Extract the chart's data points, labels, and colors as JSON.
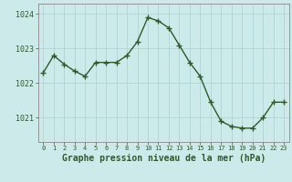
{
  "x": [
    0,
    1,
    2,
    3,
    4,
    5,
    6,
    7,
    8,
    9,
    10,
    11,
    12,
    13,
    14,
    15,
    16,
    17,
    18,
    19,
    20,
    21,
    22,
    23
  ],
  "y": [
    1022.3,
    1022.8,
    1022.55,
    1022.35,
    1022.2,
    1022.6,
    1022.6,
    1022.6,
    1022.8,
    1023.2,
    1023.9,
    1023.8,
    1023.6,
    1023.1,
    1022.6,
    1022.2,
    1021.45,
    1020.9,
    1020.75,
    1020.7,
    1020.7,
    1021.0,
    1021.45,
    1021.45
  ],
  "line_color": "#2d5a2d",
  "marker": "+",
  "markersize": 4,
  "linewidth": 1.0,
  "bg_color": "#cdeaea",
  "grid_color": "#aacfcf",
  "xlabel": "Graphe pression niveau de la mer (hPa)",
  "xlabel_fontsize": 7,
  "yticks": [
    1021,
    1022,
    1023,
    1024
  ],
  "xticks": [
    0,
    1,
    2,
    3,
    4,
    5,
    6,
    7,
    8,
    9,
    10,
    11,
    12,
    13,
    14,
    15,
    16,
    17,
    18,
    19,
    20,
    21,
    22,
    23
  ],
  "ylim": [
    1020.3,
    1024.3
  ],
  "xlim": [
    -0.5,
    23.5
  ],
  "ytick_fontsize": 6,
  "xtick_fontsize": 5,
  "axis_color": "#2d5a2d"
}
